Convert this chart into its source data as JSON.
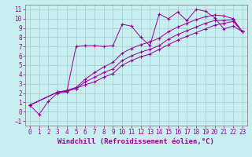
{
  "title": "",
  "xlabel": "Windchill (Refroidissement éolien,°C)",
  "ylabel": "",
  "bg_color": "#c8eef0",
  "grid_color": "#9ecfcf",
  "line_color": "#990099",
  "xlim": [
    -0.5,
    23.5
  ],
  "ylim": [
    -1.5,
    11.5
  ],
  "xticks": [
    0,
    1,
    2,
    3,
    4,
    5,
    6,
    7,
    8,
    9,
    10,
    11,
    12,
    13,
    14,
    15,
    16,
    17,
    18,
    19,
    20,
    21,
    22,
    23
  ],
  "yticks": [
    -1,
    0,
    1,
    2,
    3,
    4,
    5,
    6,
    7,
    8,
    9,
    10,
    11
  ],
  "lines": [
    {
      "x": [
        0,
        1,
        2,
        3,
        4,
        5,
        6,
        7,
        8,
        9,
        10,
        11,
        12,
        13,
        14,
        15,
        16,
        17,
        18,
        19,
        20,
        21,
        22,
        23
      ],
      "y": [
        0.7,
        -0.3,
        1.1,
        2.0,
        2.1,
        7.0,
        7.1,
        7.1,
        7.0,
        7.1,
        9.4,
        9.2,
        8.0,
        7.1,
        10.5,
        10.0,
        10.7,
        9.8,
        11.0,
        10.8,
        10.1,
        8.9,
        9.2,
        8.6
      ]
    },
    {
      "x": [
        0,
        3,
        4,
        5,
        6,
        7,
        8,
        9,
        10,
        11,
        12,
        13,
        14,
        15,
        16,
        17,
        18,
        19,
        20,
        21,
        22,
        23
      ],
      "y": [
        0.7,
        2.1,
        2.2,
        2.5,
        2.9,
        3.2,
        3.7,
        4.1,
        5.0,
        5.5,
        5.9,
        6.2,
        6.7,
        7.2,
        7.7,
        8.1,
        8.5,
        8.9,
        9.3,
        9.5,
        9.7,
        8.6
      ]
    },
    {
      "x": [
        0,
        3,
        4,
        5,
        6,
        7,
        8,
        9,
        10,
        11,
        12,
        13,
        14,
        15,
        16,
        17,
        18,
        19,
        20,
        21,
        22,
        23
      ],
      "y": [
        0.7,
        2.1,
        2.2,
        2.5,
        3.2,
        3.7,
        4.2,
        4.6,
        5.5,
        6.0,
        6.4,
        6.7,
        7.1,
        7.8,
        8.3,
        8.7,
        9.1,
        9.5,
        9.8,
        9.8,
        9.9,
        8.6
      ]
    },
    {
      "x": [
        0,
        3,
        4,
        5,
        6,
        7,
        8,
        9,
        10,
        11,
        12,
        13,
        14,
        15,
        16,
        17,
        18,
        19,
        20,
        21,
        22,
        23
      ],
      "y": [
        0.7,
        2.1,
        2.3,
        2.6,
        3.5,
        4.2,
        4.8,
        5.3,
        6.3,
        6.8,
        7.2,
        7.5,
        7.9,
        8.6,
        9.1,
        9.5,
        9.9,
        10.2,
        10.4,
        10.3,
        10.0,
        8.6
      ]
    }
  ],
  "xlabel_fontsize": 6.5,
  "tick_fontsize": 5.5
}
